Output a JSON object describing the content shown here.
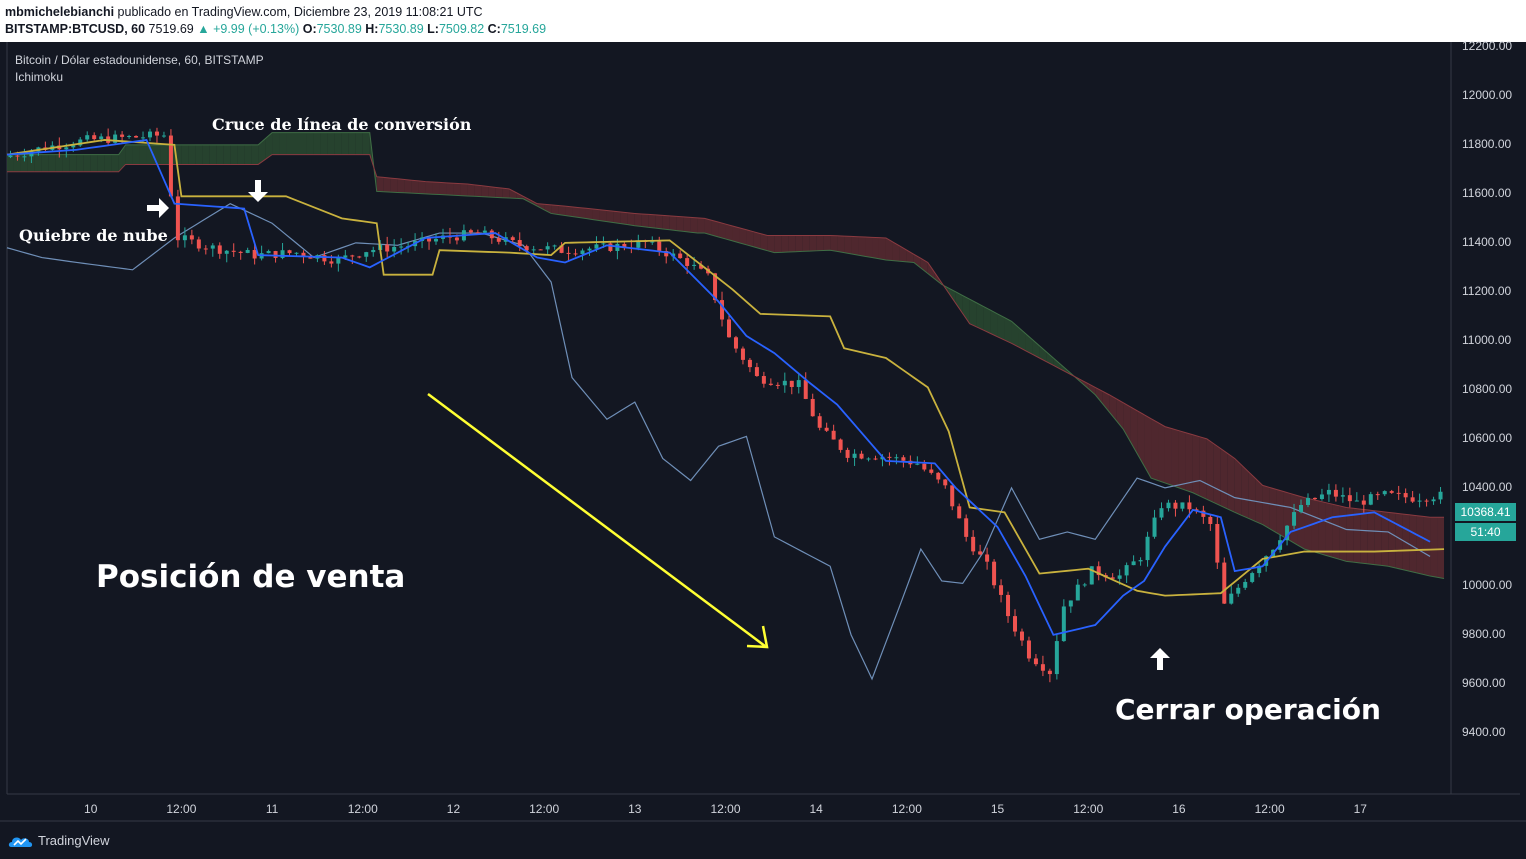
{
  "header": {
    "author": "mbmichelebianchi",
    "published_text": "publicado en TradingView.com, Diciembre 23, 2019 11:08:21 UTC",
    "symbol": "BITSTAMP:BTCUSD, 60",
    "last": "7519.69",
    "change": "▲ +9.99 (+0.13%)",
    "o_label": "O:",
    "o_value": "7530.89",
    "h_label": "H:",
    "h_value": "7530.89",
    "l_label": "L:",
    "l_value": "7509.82",
    "c_label": "C:",
    "c_value": "7519.69"
  },
  "chart_data": {
    "type": "candlestick",
    "title": "Bitcoin / Dólar estadounidense, 60, BITSTAMP",
    "indicator": "Ichimoku",
    "ylim": [
      9230,
      12330
    ],
    "xlim": [
      0,
      207
    ],
    "y_ticks": [
      "12200.00",
      "12000.00",
      "11800.00",
      "11600.00",
      "11400.00",
      "11200.00",
      "11000.00",
      "10800.00",
      "10600.00",
      "10400.00",
      "10200.00",
      "10000.00",
      "9800.00",
      "9600.00",
      "9400.00"
    ],
    "x_ticks": [
      {
        "label": "10",
        "t": 12
      },
      {
        "label": "12:00",
        "t": 25
      },
      {
        "label": "11",
        "t": 38
      },
      {
        "label": "12:00",
        "t": 51
      },
      {
        "label": "12",
        "t": 64
      },
      {
        "label": "12:00",
        "t": 77
      },
      {
        "label": "13",
        "t": 90
      },
      {
        "label": "12:00",
        "t": 103
      },
      {
        "label": "14",
        "t": 116
      },
      {
        "label": "12:00",
        "t": 129
      },
      {
        "label": "15",
        "t": 142
      },
      {
        "label": "12:00",
        "t": 155
      },
      {
        "label": "16",
        "t": 168
      },
      {
        "label": "12:00",
        "t": 181
      },
      {
        "label": "17",
        "t": 194
      }
    ],
    "price_anchors": [
      [
        0,
        11750
      ],
      [
        6,
        11790
      ],
      [
        12,
        11820
      ],
      [
        18,
        11830
      ],
      [
        23,
        11840
      ],
      [
        24,
        11600
      ],
      [
        25,
        11420
      ],
      [
        30,
        11380
      ],
      [
        36,
        11350
      ],
      [
        42,
        11360
      ],
      [
        48,
        11330
      ],
      [
        52,
        11370
      ],
      [
        58,
        11390
      ],
      [
        63,
        11420
      ],
      [
        68,
        11440
      ],
      [
        74,
        11390
      ],
      [
        80,
        11370
      ],
      [
        86,
        11380
      ],
      [
        92,
        11400
      ],
      [
        98,
        11320
      ],
      [
        101,
        11260
      ],
      [
        104,
        11010
      ],
      [
        108,
        10850
      ],
      [
        114,
        10820
      ],
      [
        117,
        10640
      ],
      [
        121,
        10540
      ],
      [
        126,
        10530
      ],
      [
        131,
        10500
      ],
      [
        135,
        10400
      ],
      [
        138,
        10200
      ],
      [
        141,
        10080
      ],
      [
        144,
        9880
      ],
      [
        147,
        9720
      ],
      [
        150,
        9650
      ],
      [
        152,
        9920
      ],
      [
        156,
        10060
      ],
      [
        160,
        10040
      ],
      [
        163,
        10120
      ],
      [
        166,
        10330
      ],
      [
        170,
        10320
      ],
      [
        173,
        10250
      ],
      [
        175,
        9920
      ],
      [
        178,
        10030
      ],
      [
        182,
        10160
      ],
      [
        186,
        10330
      ],
      [
        190,
        10380
      ],
      [
        194,
        10340
      ],
      [
        198,
        10370
      ],
      [
        202,
        10360
      ],
      [
        205,
        10368
      ]
    ],
    "conversion_line": [
      [
        0,
        11760
      ],
      [
        10,
        11780
      ],
      [
        20,
        11820
      ],
      [
        24,
        11560
      ],
      [
        34,
        11540
      ],
      [
        36,
        11350
      ],
      [
        48,
        11340
      ],
      [
        52,
        11300
      ],
      [
        60,
        11420
      ],
      [
        70,
        11440
      ],
      [
        76,
        11340
      ],
      [
        80,
        11320
      ],
      [
        86,
        11390
      ],
      [
        95,
        11360
      ],
      [
        102,
        11160
      ],
      [
        106,
        11020
      ],
      [
        110,
        10950
      ],
      [
        115,
        10830
      ],
      [
        119,
        10740
      ],
      [
        126,
        10510
      ],
      [
        133,
        10500
      ],
      [
        136,
        10400
      ],
      [
        142,
        10240
      ],
      [
        146,
        10040
      ],
      [
        150,
        9800
      ],
      [
        156,
        9840
      ],
      [
        160,
        9960
      ],
      [
        163,
        10020
      ],
      [
        166,
        10160
      ],
      [
        170,
        10310
      ],
      [
        174,
        10280
      ],
      [
        176,
        10060
      ],
      [
        180,
        10080
      ],
      [
        184,
        10220
      ],
      [
        190,
        10280
      ],
      [
        196,
        10300
      ],
      [
        204,
        10180
      ]
    ],
    "base_line": [
      [
        0,
        11760
      ],
      [
        14,
        11820
      ],
      [
        24,
        11800
      ],
      [
        25,
        11590
      ],
      [
        40,
        11590
      ],
      [
        48,
        11500
      ],
      [
        53,
        11480
      ],
      [
        54,
        11270
      ],
      [
        61,
        11270
      ],
      [
        62,
        11370
      ],
      [
        72,
        11360
      ],
      [
        78,
        11350
      ],
      [
        80,
        11400
      ],
      [
        95,
        11410
      ],
      [
        104,
        11210
      ],
      [
        108,
        11110
      ],
      [
        118,
        11100
      ],
      [
        120,
        10970
      ],
      [
        126,
        10930
      ],
      [
        132,
        10810
      ],
      [
        135,
        10630
      ],
      [
        138,
        10320
      ],
      [
        143,
        10300
      ],
      [
        148,
        10050
      ],
      [
        155,
        10070
      ],
      [
        162,
        9980
      ],
      [
        166,
        9960
      ],
      [
        174,
        9970
      ],
      [
        180,
        10110
      ],
      [
        186,
        10140
      ],
      [
        196,
        10140
      ],
      [
        206,
        10150
      ]
    ],
    "lagging_span": [
      [
        0,
        11380
      ],
      [
        5,
        11340
      ],
      [
        10,
        11320
      ],
      [
        18,
        11290
      ],
      [
        24,
        11420
      ],
      [
        32,
        11560
      ],
      [
        38,
        11480
      ],
      [
        44,
        11340
      ],
      [
        50,
        11400
      ],
      [
        56,
        11390
      ],
      [
        62,
        11440
      ],
      [
        68,
        11440
      ],
      [
        74,
        11390
      ],
      [
        78,
        11240
      ],
      [
        81,
        10850
      ],
      [
        86,
        10680
      ],
      [
        90,
        10750
      ],
      [
        94,
        10520
      ],
      [
        98,
        10430
      ],
      [
        102,
        10570
      ],
      [
        106,
        10610
      ],
      [
        110,
        10200
      ],
      [
        114,
        10140
      ],
      [
        118,
        10080
      ],
      [
        121,
        9800
      ],
      [
        124,
        9620
      ],
      [
        128,
        9920
      ],
      [
        131,
        10150
      ],
      [
        134,
        10020
      ],
      [
        137,
        10010
      ],
      [
        140,
        10140
      ],
      [
        144,
        10400
      ],
      [
        148,
        10190
      ],
      [
        152,
        10220
      ],
      [
        156,
        10190
      ],
      [
        162,
        10440
      ],
      [
        166,
        10400
      ],
      [
        171,
        10430
      ],
      [
        176,
        10360
      ],
      [
        184,
        10320
      ],
      [
        192,
        10230
      ],
      [
        198,
        10220
      ],
      [
        204,
        10120
      ]
    ],
    "cloud_span_a": [
      [
        0,
        11760
      ],
      [
        16,
        11760
      ],
      [
        17,
        11800
      ],
      [
        36,
        11800
      ],
      [
        38,
        11850
      ],
      [
        52,
        11850
      ],
      [
        53,
        11610
      ],
      [
        74,
        11580
      ],
      [
        78,
        11520
      ],
      [
        90,
        11470
      ],
      [
        99,
        11440
      ],
      [
        100,
        11440
      ],
      [
        110,
        11360
      ],
      [
        118,
        11370
      ],
      [
        126,
        11330
      ],
      [
        130,
        11320
      ],
      [
        134,
        11230
      ],
      [
        138,
        11170
      ],
      [
        144,
        11080
      ],
      [
        150,
        10930
      ],
      [
        156,
        10780
      ],
      [
        160,
        10640
      ],
      [
        164,
        10440
      ],
      [
        170,
        10380
      ],
      [
        176,
        10300
      ],
      [
        180,
        10250
      ],
      [
        186,
        10150
      ],
      [
        192,
        10100
      ],
      [
        198,
        10080
      ],
      [
        204,
        10040
      ],
      [
        206,
        10030
      ]
    ],
    "cloud_span_b": [
      [
        0,
        11690
      ],
      [
        16,
        11690
      ],
      [
        17,
        11720
      ],
      [
        36,
        11720
      ],
      [
        38,
        11760
      ],
      [
        52,
        11760
      ],
      [
        53,
        11670
      ],
      [
        60,
        11650
      ],
      [
        66,
        11640
      ],
      [
        72,
        11620
      ],
      [
        76,
        11560
      ],
      [
        80,
        11550
      ],
      [
        90,
        11520
      ],
      [
        100,
        11500
      ],
      [
        109,
        11430
      ],
      [
        118,
        11430
      ],
      [
        126,
        11420
      ],
      [
        132,
        11320
      ],
      [
        138,
        11070
      ],
      [
        144,
        10990
      ],
      [
        150,
        10900
      ],
      [
        158,
        10780
      ],
      [
        166,
        10650
      ],
      [
        172,
        10600
      ],
      [
        176,
        10520
      ],
      [
        180,
        10410
      ],
      [
        186,
        10360
      ],
      [
        192,
        10320
      ],
      [
        198,
        10300
      ],
      [
        204,
        10280
      ],
      [
        206,
        10280
      ]
    ],
    "annotations": [
      "Cruce de línea de conversión",
      "Quiebre de nube",
      "Posición de venta",
      "Cerrar operación"
    ],
    "last_price": "10368.41",
    "countdown": "51:40",
    "colors": {
      "up": "#26a69a",
      "down": "#ef5350",
      "conversion": "#2962ff",
      "base": "#c9b23e",
      "lagging": "#6f8fb8",
      "bear_cloud": "#5a2a30",
      "bull_cloud": "#2a4a30",
      "arrow": "#ffff33"
    }
  },
  "footer": {
    "brand": "TradingView"
  }
}
